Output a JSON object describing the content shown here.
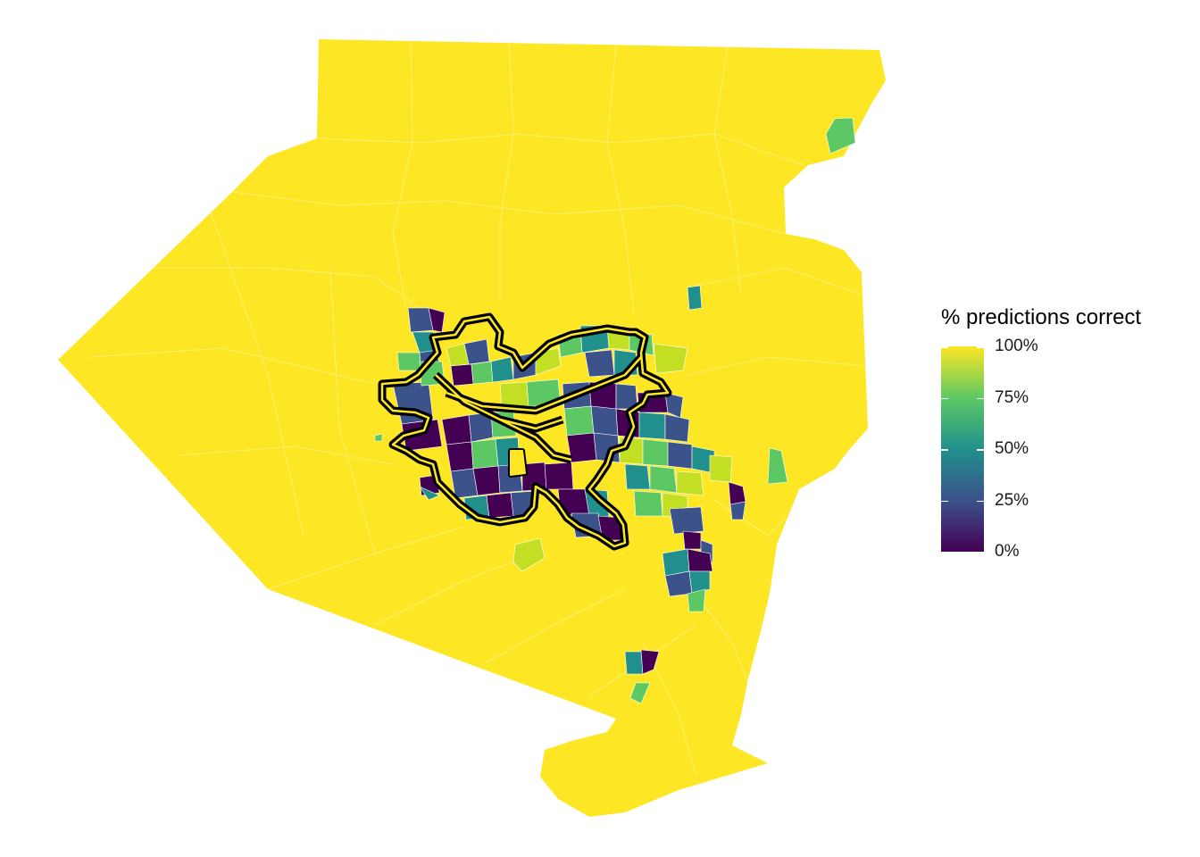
{
  "legend": {
    "title": "% predictions correct",
    "ticks": [
      {
        "label": "100%",
        "value": 1.0
      },
      {
        "label": "75%",
        "value": 0.75
      },
      {
        "label": "50%",
        "value": 0.5
      },
      {
        "label": "25%",
        "value": 0.25
      },
      {
        "label": "0%",
        "value": 0.0
      }
    ]
  },
  "colors": {
    "base_fill": "#FDE725",
    "viridis": [
      "#440154",
      "#3B528B",
      "#21908C",
      "#5DC863",
      "#FDE725"
    ],
    "city_outline_outer": "#000000",
    "city_outline_inner": "#FDE725",
    "boundary": "#ffffff"
  }
}
